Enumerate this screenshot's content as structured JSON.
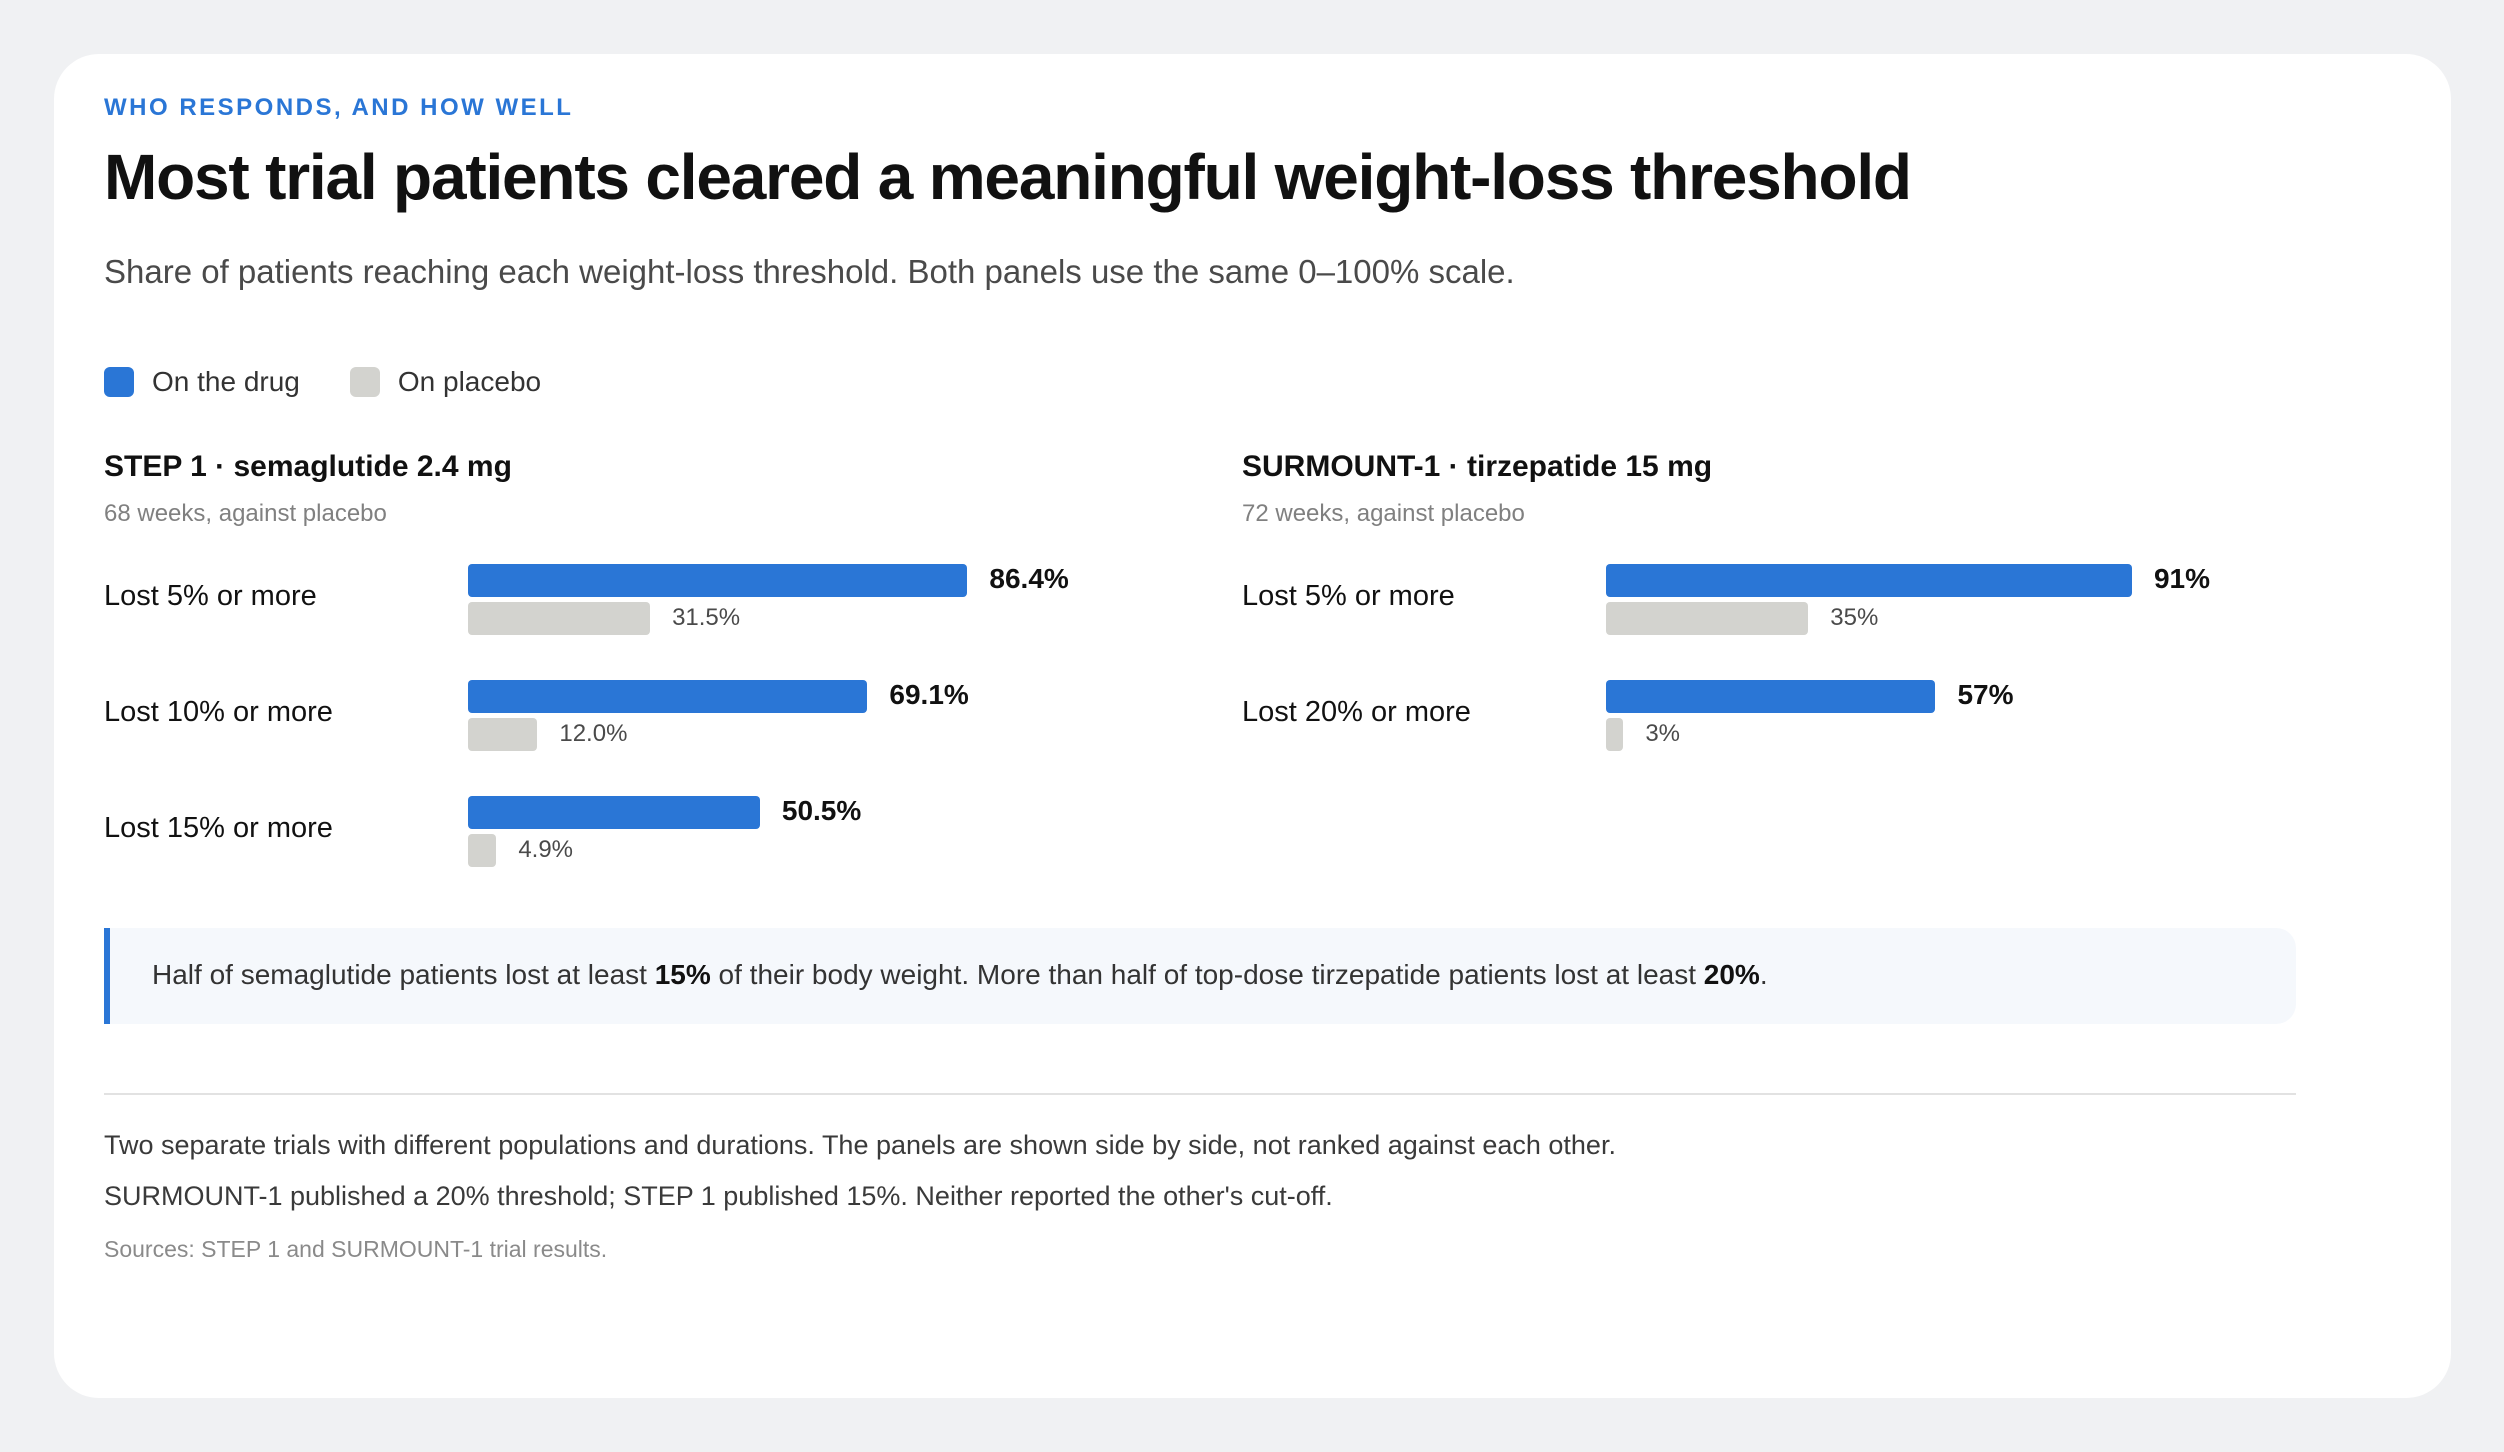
{
  "eyebrow": "WHO RESPONDS, AND HOW WELL",
  "title": "Most trial patients cleared a meaningful weight-loss threshold",
  "subtitle": "Share of patients reaching each weight-loss threshold. Both panels use the same 0–100% scale.",
  "colors": {
    "drug": "#2a76d6",
    "placebo": "#d3d3cf",
    "accent": "#2a76d6"
  },
  "legend": {
    "drug": "On the drug",
    "placebo": "On placebo"
  },
  "chart_data": [
    {
      "type": "bar",
      "title": "STEP 1 · semaglutide 2.4 mg",
      "subtitle": "68 weeks, against placebo",
      "categories": [
        "Lost 5% or more",
        "Lost 10% or more",
        "Lost 15% or more"
      ],
      "series": [
        {
          "name": "On the drug",
          "values": [
            86.4,
            69.1,
            50.5
          ],
          "labels": [
            "86.4%",
            "69.1%",
            "50.5%"
          ]
        },
        {
          "name": "On placebo",
          "values": [
            31.5,
            12.0,
            4.9
          ],
          "labels": [
            "31.5%",
            "12.0%",
            "4.9%"
          ]
        }
      ],
      "xlim": [
        0,
        100
      ],
      "grid": false,
      "legend": "top-left"
    },
    {
      "type": "bar",
      "title": "SURMOUNT-1 · tirzepatide 15 mg",
      "subtitle": "72 weeks, against placebo",
      "categories": [
        "Lost 5% or more",
        "Lost 20% or more"
      ],
      "series": [
        {
          "name": "On the drug",
          "values": [
            91,
            57
          ],
          "labels": [
            "91%",
            "57%"
          ]
        },
        {
          "name": "On placebo",
          "values": [
            35,
            3
          ],
          "labels": [
            "35%",
            "3%"
          ]
        }
      ],
      "xlim": [
        0,
        100
      ],
      "grid": false,
      "legend": "top-left"
    }
  ],
  "callout": {
    "part1": "Half of semaglutide patients lost at least ",
    "bold1": "15%",
    "part2": " of their body weight. More than half of top-dose tirzepatide patients lost at least ",
    "bold2": "20%",
    "part3": "."
  },
  "notes": [
    "Two separate trials with different populations and durations. The panels are shown side by side, not ranked against each other.",
    "SURMOUNT-1 published a 20% threshold; STEP 1 published 15%. Neither reported the other's cut-off."
  ],
  "source": "Sources: STEP 1 and SURMOUNT-1 trial results."
}
